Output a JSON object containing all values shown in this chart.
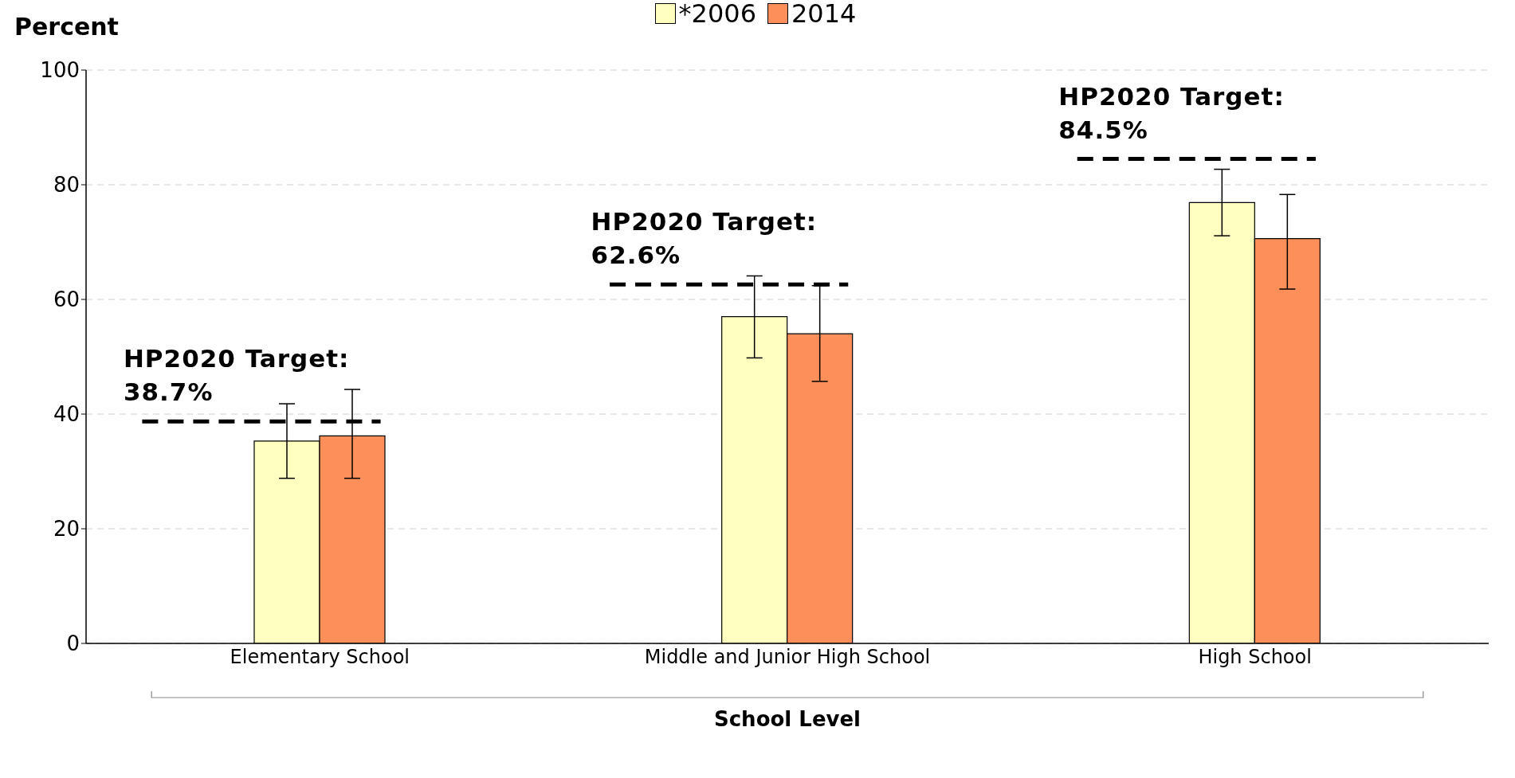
{
  "chart_data": {
    "type": "bar",
    "xlabel": "School Level",
    "ylabel": "Percent",
    "categories": [
      "Elementary School",
      "Middle and Junior High School",
      "High School"
    ],
    "series": [
      {
        "name": "*2006",
        "color": "#ffffc0",
        "values": [
          35.3,
          57.0,
          76.9
        ],
        "errors": [
          [
            28.8,
            41.8
          ],
          [
            49.8,
            64.1
          ],
          [
            71.1,
            82.7
          ]
        ]
      },
      {
        "name": "2014",
        "color": "#fc8f5a",
        "values": [
          36.2,
          54.0,
          70.6
        ],
        "errors": [
          [
            28.8,
            44.3
          ],
          [
            45.7,
            62.4
          ],
          [
            61.8,
            78.3
          ]
        ]
      }
    ],
    "ylim": [
      0,
      100
    ],
    "yticks": [
      0,
      20,
      40,
      60,
      80,
      100
    ],
    "grid": "y",
    "legend": "top",
    "ref_lines": [
      {
        "axis": "y",
        "value": 38.7,
        "label": "HP2020 Target: 38.7%",
        "color": "#000000",
        "line_style": "dashed"
      },
      {
        "axis": "y",
        "value": 62.6,
        "label": "HP2020 Target: 62.6%",
        "color": "#000000",
        "line_style": "dashed"
      },
      {
        "axis": "y",
        "value": 84.5,
        "label": "HP2020 Target: 84.5%",
        "color": "#000000",
        "line_style": "dashed"
      }
    ]
  }
}
